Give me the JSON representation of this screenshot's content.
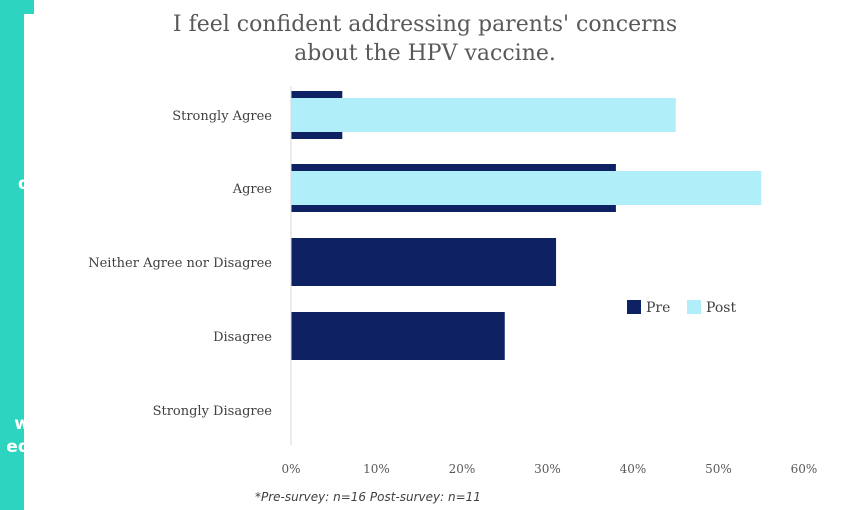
{
  "side_panel": {
    "color": "#2dd4bf",
    "fragments": [
      "d",
      "w",
      "ed"
    ]
  },
  "chart_data": {
    "type": "bar",
    "orientation": "horizontal",
    "title_lines": [
      "I feel confident addressing parents' concerns",
      "about the HPV vaccine."
    ],
    "categories": [
      "Strongly Agree",
      "Agree",
      "Neither Agree nor Disagree",
      "Disagree",
      "Strongly Disagree"
    ],
    "series": [
      {
        "name": "Pre",
        "color": "#0d2163",
        "values": [
          6,
          38,
          31,
          25,
          0
        ]
      },
      {
        "name": "Post",
        "color": "#b0eefa",
        "values": [
          45,
          55,
          0,
          0,
          0
        ]
      }
    ],
    "xlim": [
      0,
      60
    ],
    "x_ticks": [
      "0%",
      "10%",
      "20%",
      "30%",
      "40%",
      "50%",
      "60%"
    ],
    "x_tick_values": [
      0,
      10,
      20,
      30,
      40,
      50,
      60
    ],
    "legend_placement": "right",
    "grid": false
  },
  "footnote": "*Pre-survey: n=16 Post-survey: n=11"
}
